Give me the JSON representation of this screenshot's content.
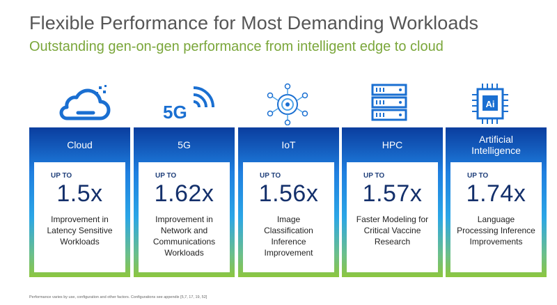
{
  "title": "Flexible Performance for Most Demanding Workloads",
  "subtitle": "Outstanding gen-on-gen performance from intelligent edge to cloud",
  "colors": {
    "navy": "#0a3d9e",
    "blue": "#1f7fe0",
    "green": "#8cc63f",
    "title_gray": "#555555",
    "subtitle_green": "#7aa63a"
  },
  "cards": [
    {
      "icon": "cloud-icon",
      "label": "Cloud",
      "upto": "UP TO",
      "value": "1.5x",
      "description": "Improvement in Latency Sensitive Workloads"
    },
    {
      "icon": "5g-signal-icon",
      "icon_text": "5G",
      "label": "5G",
      "upto": "UP TO",
      "value": "1.62x",
      "description": "Improvement in Network and Communications Workloads"
    },
    {
      "icon": "iot-network-icon",
      "label": "IoT",
      "upto": "UP TO",
      "value": "1.56x",
      "description": "Image Classification Inference Improvement"
    },
    {
      "icon": "server-rack-icon",
      "label": "HPC",
      "upto": "UP TO",
      "value": "1.57x",
      "description": "Faster Modeling for Critical Vaccine Research"
    },
    {
      "icon": "ai-chip-icon",
      "icon_text": "Ai",
      "label": "Artificial Intelligence",
      "upto": "UP TO",
      "value": "1.74x",
      "description": "Language Processing Inference Improvements"
    }
  ],
  "footnote": "Performance varies by use, configuration and other factors. Configurations see appendix [5,7, 17, 19, 52]"
}
